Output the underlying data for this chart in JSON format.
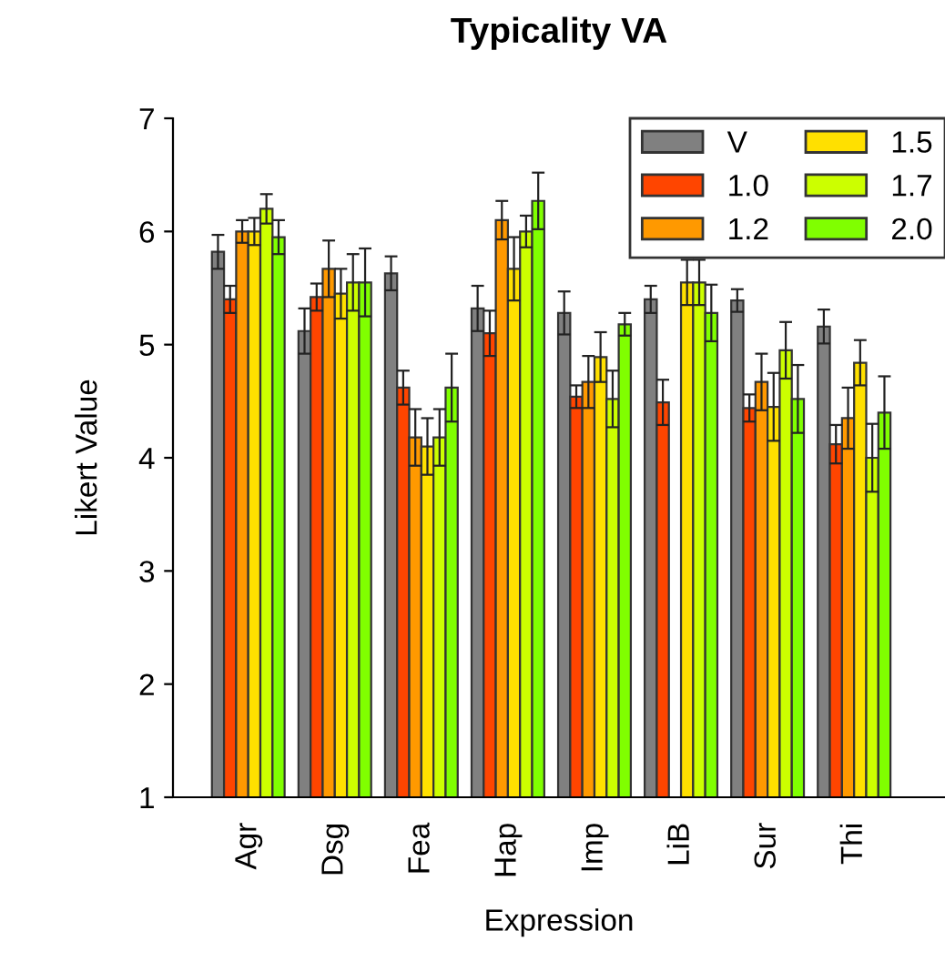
{
  "chart_data": {
    "type": "bar",
    "title": "Typicality VA",
    "xlabel": "Expression",
    "ylabel": "Likert Value",
    "categories": [
      "Agr",
      "Dsg",
      "Fea",
      "Hap",
      "Imp",
      "LiB",
      "Sur",
      "Thi"
    ],
    "ylim": [
      1,
      7
    ],
    "yticks": [
      1,
      2,
      3,
      4,
      5,
      6,
      7
    ],
    "grid": false,
    "legend": "top right",
    "series": [
      {
        "name": "V",
        "color": "#808080",
        "values": [
          5.82,
          5.12,
          5.63,
          5.32,
          5.28,
          5.4,
          5.39,
          5.16
        ],
        "errors": [
          0.15,
          0.2,
          0.15,
          0.2,
          0.19,
          0.12,
          0.1,
          0.15
        ]
      },
      {
        "name": "1.0",
        "color": "#ff4500",
        "values": [
          5.4,
          5.42,
          4.62,
          5.1,
          4.54,
          4.49,
          4.44,
          4.12
        ],
        "errors": [
          0.12,
          0.12,
          0.15,
          0.2,
          0.1,
          0.2,
          0.12,
          0.17
        ]
      },
      {
        "name": "1.2",
        "color": "#ff9900",
        "values": [
          6.0,
          5.67,
          4.18,
          6.1,
          4.67,
          null,
          4.67,
          4.35
        ],
        "errors": [
          0.1,
          0.25,
          0.25,
          0.17,
          0.23,
          null,
          0.25,
          0.27
        ]
      },
      {
        "name": "1.5",
        "color": "#ffe000",
        "values": [
          6.0,
          5.45,
          4.1,
          5.67,
          4.89,
          5.55,
          4.45,
          4.84
        ],
        "errors": [
          0.12,
          0.22,
          0.25,
          0.28,
          0.22,
          0.2,
          0.3,
          0.2
        ]
      },
      {
        "name": "1.7",
        "color": "#ccff00",
        "values": [
          6.2,
          5.55,
          4.18,
          6.0,
          4.52,
          5.55,
          4.95,
          4.0
        ],
        "errors": [
          0.13,
          0.25,
          0.25,
          0.14,
          0.25,
          0.2,
          0.25,
          0.3
        ]
      },
      {
        "name": "2.0",
        "color": "#80ff00",
        "values": [
          5.95,
          5.55,
          4.62,
          6.27,
          5.18,
          5.28,
          4.52,
          4.4
        ],
        "errors": [
          0.15,
          0.3,
          0.3,
          0.25,
          0.1,
          0.25,
          0.3,
          0.32
        ]
      }
    ]
  }
}
